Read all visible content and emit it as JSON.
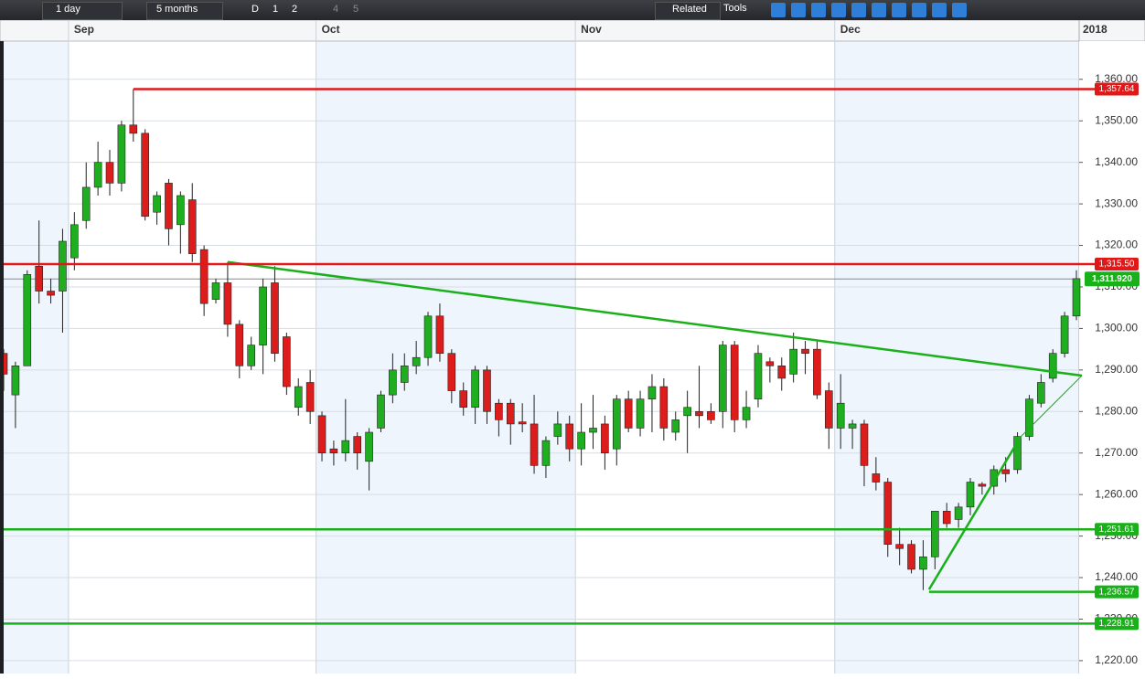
{
  "toolbar": {
    "interval": "1 day",
    "range": "5 months",
    "buttons": [
      "D",
      "1",
      "2",
      "4",
      "5"
    ],
    "related": "Related",
    "tools": "Tools"
  },
  "chart_data": {
    "type": "candlestick",
    "categories": [
      null,
      null,
      null,
      null,
      null,
      null,
      "Sep",
      null,
      null,
      null,
      null,
      null,
      null,
      null,
      null,
      null,
      null,
      null,
      null,
      null,
      null,
      null,
      null,
      null,
      null,
      null,
      null,
      "Oct",
      null,
      null,
      null,
      null,
      null,
      null,
      null,
      null,
      null,
      null,
      null,
      null,
      null,
      null,
      null,
      null,
      null,
      null,
      null,
      null,
      null,
      "Nov",
      null,
      null,
      null,
      null,
      null,
      null,
      null,
      null,
      null,
      null,
      null,
      null,
      null,
      null,
      null,
      null,
      null,
      null,
      null,
      null,
      null,
      "Dec",
      null,
      null,
      null,
      null,
      null,
      null,
      null,
      null,
      null,
      null,
      null,
      null,
      null,
      null,
      null,
      null,
      null,
      null,
      null,
      null
    ],
    "year_label": "2018",
    "open": [
      1294,
      1284,
      1291,
      1315,
      1309,
      1309,
      1317,
      1326,
      1334,
      1340,
      1335,
      1349,
      1347,
      1328,
      1335,
      1325,
      1331,
      1319,
      1307,
      1311,
      1301,
      1291,
      1296,
      1311,
      1298,
      1281,
      1287,
      1279,
      1271,
      1270,
      1274,
      1268,
      1276,
      1284,
      1287,
      1291,
      1293,
      1303,
      1294,
      1285,
      1281,
      1290,
      1282,
      1282,
      1277.5,
      1277,
      1267,
      1274,
      1277,
      1271,
      1275,
      1277,
      1271,
      1283,
      1276,
      1283,
      1286,
      1275,
      1279,
      1280,
      1280,
      1280,
      1296,
      1278,
      1283,
      1292,
      1291,
      1289,
      1295,
      1295,
      1285,
      1276,
      1276,
      1277,
      1265,
      1263,
      1248,
      1248,
      1242,
      1245,
      1256,
      1254,
      1257,
      1262.5,
      1262,
      1266,
      1266,
      1274,
      1282,
      1288,
      1294,
      1303
    ],
    "high": [
      1295,
      1292,
      1314,
      1326,
      1312,
      1324,
      1328,
      1340,
      1345,
      1343,
      1350,
      1357.64,
      1348,
      1333,
      1336,
      1333,
      1335,
      1320,
      1312,
      1316,
      1302,
      1298,
      1312,
      1315,
      1299,
      1288,
      1290,
      1280,
      1273,
      1283,
      1275,
      1276,
      1285,
      1294,
      1294,
      1297,
      1304,
      1306,
      1295,
      1287,
      1291,
      1291,
      1283,
      1283,
      1282,
      1284,
      1274,
      1280,
      1279,
      1282,
      1284,
      1279,
      1284,
      1285,
      1285,
      1289,
      1288,
      1280,
      1285,
      1291,
      1282,
      1297,
      1297,
      1285,
      1296,
      1293,
      1293,
      1299,
      1297,
      1297,
      1287,
      1289,
      1278,
      1278,
      1269,
      1264,
      1252,
      1249,
      1249,
      1256,
      1258,
      1258,
      1264,
      1263,
      1267,
      1269,
      1275,
      1284,
      1289,
      1295,
      1304,
      1314
    ],
    "low": [
      1285,
      1276,
      1291,
      1306,
      1306,
      1299,
      1314,
      1324,
      1332,
      1332,
      1333,
      1345,
      1326,
      1325,
      1320,
      1318,
      1316,
      1303,
      1306,
      1298,
      1288,
      1290,
      1289,
      1292,
      1284,
      1279,
      1277,
      1268,
      1267,
      1268,
      1266,
      1261,
      1275,
      1282,
      1285,
      1289,
      1291,
      1292,
      1282,
      1279,
      1277,
      1277,
      1274,
      1272,
      1275,
      1265,
      1264,
      1272,
      1268,
      1267,
      1271,
      1266,
      1267,
      1275,
      1274,
      1275,
      1273,
      1273,
      1270,
      1276,
      1277,
      1276,
      1275,
      1276,
      1281,
      1287,
      1285,
      1287,
      1289,
      1283,
      1271,
      1271,
      1271,
      1262,
      1261,
      1245,
      1243,
      1241,
      1237,
      1242,
      1252,
      1252,
      1255,
      1260,
      1260,
      1263,
      1265,
      1273,
      1281,
      1287,
      1293,
      1302
    ],
    "close": [
      1289,
      1291,
      1313,
      1309,
      1308,
      1321,
      1325,
      1334,
      1340,
      1335,
      1349,
      1347,
      1327,
      1332,
      1324,
      1332,
      1318,
      1306,
      1311,
      1301,
      1291,
      1296,
      1310,
      1294,
      1286,
      1286,
      1280,
      1270,
      1270,
      1273,
      1270,
      1275,
      1284,
      1290,
      1291,
      1293,
      1303,
      1294,
      1285,
      1281,
      1290,
      1280,
      1278,
      1277,
      1277,
      1267,
      1273,
      1277,
      1271,
      1275,
      1276,
      1270,
      1283,
      1276,
      1283,
      1286,
      1276,
      1278,
      1281,
      1279,
      1278,
      1296,
      1278,
      1281,
      1294,
      1291,
      1288,
      1295,
      1294,
      1284,
      1276,
      1282,
      1277,
      1267,
      1263,
      1248,
      1247,
      1242,
      1245,
      1256,
      1253,
      1257,
      1263,
      1262,
      1266,
      1265,
      1274,
      1283,
      1287,
      1294,
      1303,
      1312
    ],
    "up_color": "#1fae1f",
    "down_color": "#dd1c1c",
    "ylim": [
      1216.9,
      1369.2
    ],
    "yticks": [
      {
        "value": 1220,
        "label": "1,220.00"
      },
      {
        "value": 1230,
        "label": "1,230.00"
      },
      {
        "value": 1240,
        "label": "1,240.00"
      },
      {
        "value": 1250,
        "label": "1,250.00"
      },
      {
        "value": 1260,
        "label": "1,260.00"
      },
      {
        "value": 1270,
        "label": "1,270.00"
      },
      {
        "value": 1280,
        "label": "1,280.00"
      },
      {
        "value": 1290,
        "label": "1,290.00"
      },
      {
        "value": 1300,
        "label": "1,300.00"
      },
      {
        "value": 1310,
        "label": "1,310.00"
      },
      {
        "value": 1320,
        "label": "1,320.00"
      },
      {
        "value": 1330,
        "label": "1,330.00"
      },
      {
        "value": 1340,
        "label": "1,340.00"
      },
      {
        "value": 1350,
        "label": "1,350.00"
      },
      {
        "value": 1360,
        "label": "1,360.00"
      }
    ],
    "grid": true,
    "levels": [
      {
        "value": 1357.64,
        "label": "1,357.64",
        "color": "#e01818"
      },
      {
        "value": 1315.5,
        "label": "1,315.50",
        "color": "#e01818"
      },
      {
        "value": 1251.61,
        "label": "1,251.61",
        "color": "#19b019"
      },
      {
        "value": 1236.57,
        "label": "1,236.57",
        "color": "#19b019"
      },
      {
        "value": 1228.91,
        "label": "1,228.91",
        "color": "#19b019"
      }
    ],
    "last_price": {
      "value": 1311.92,
      "label": "1,311.920",
      "color": "#19b019"
    }
  }
}
